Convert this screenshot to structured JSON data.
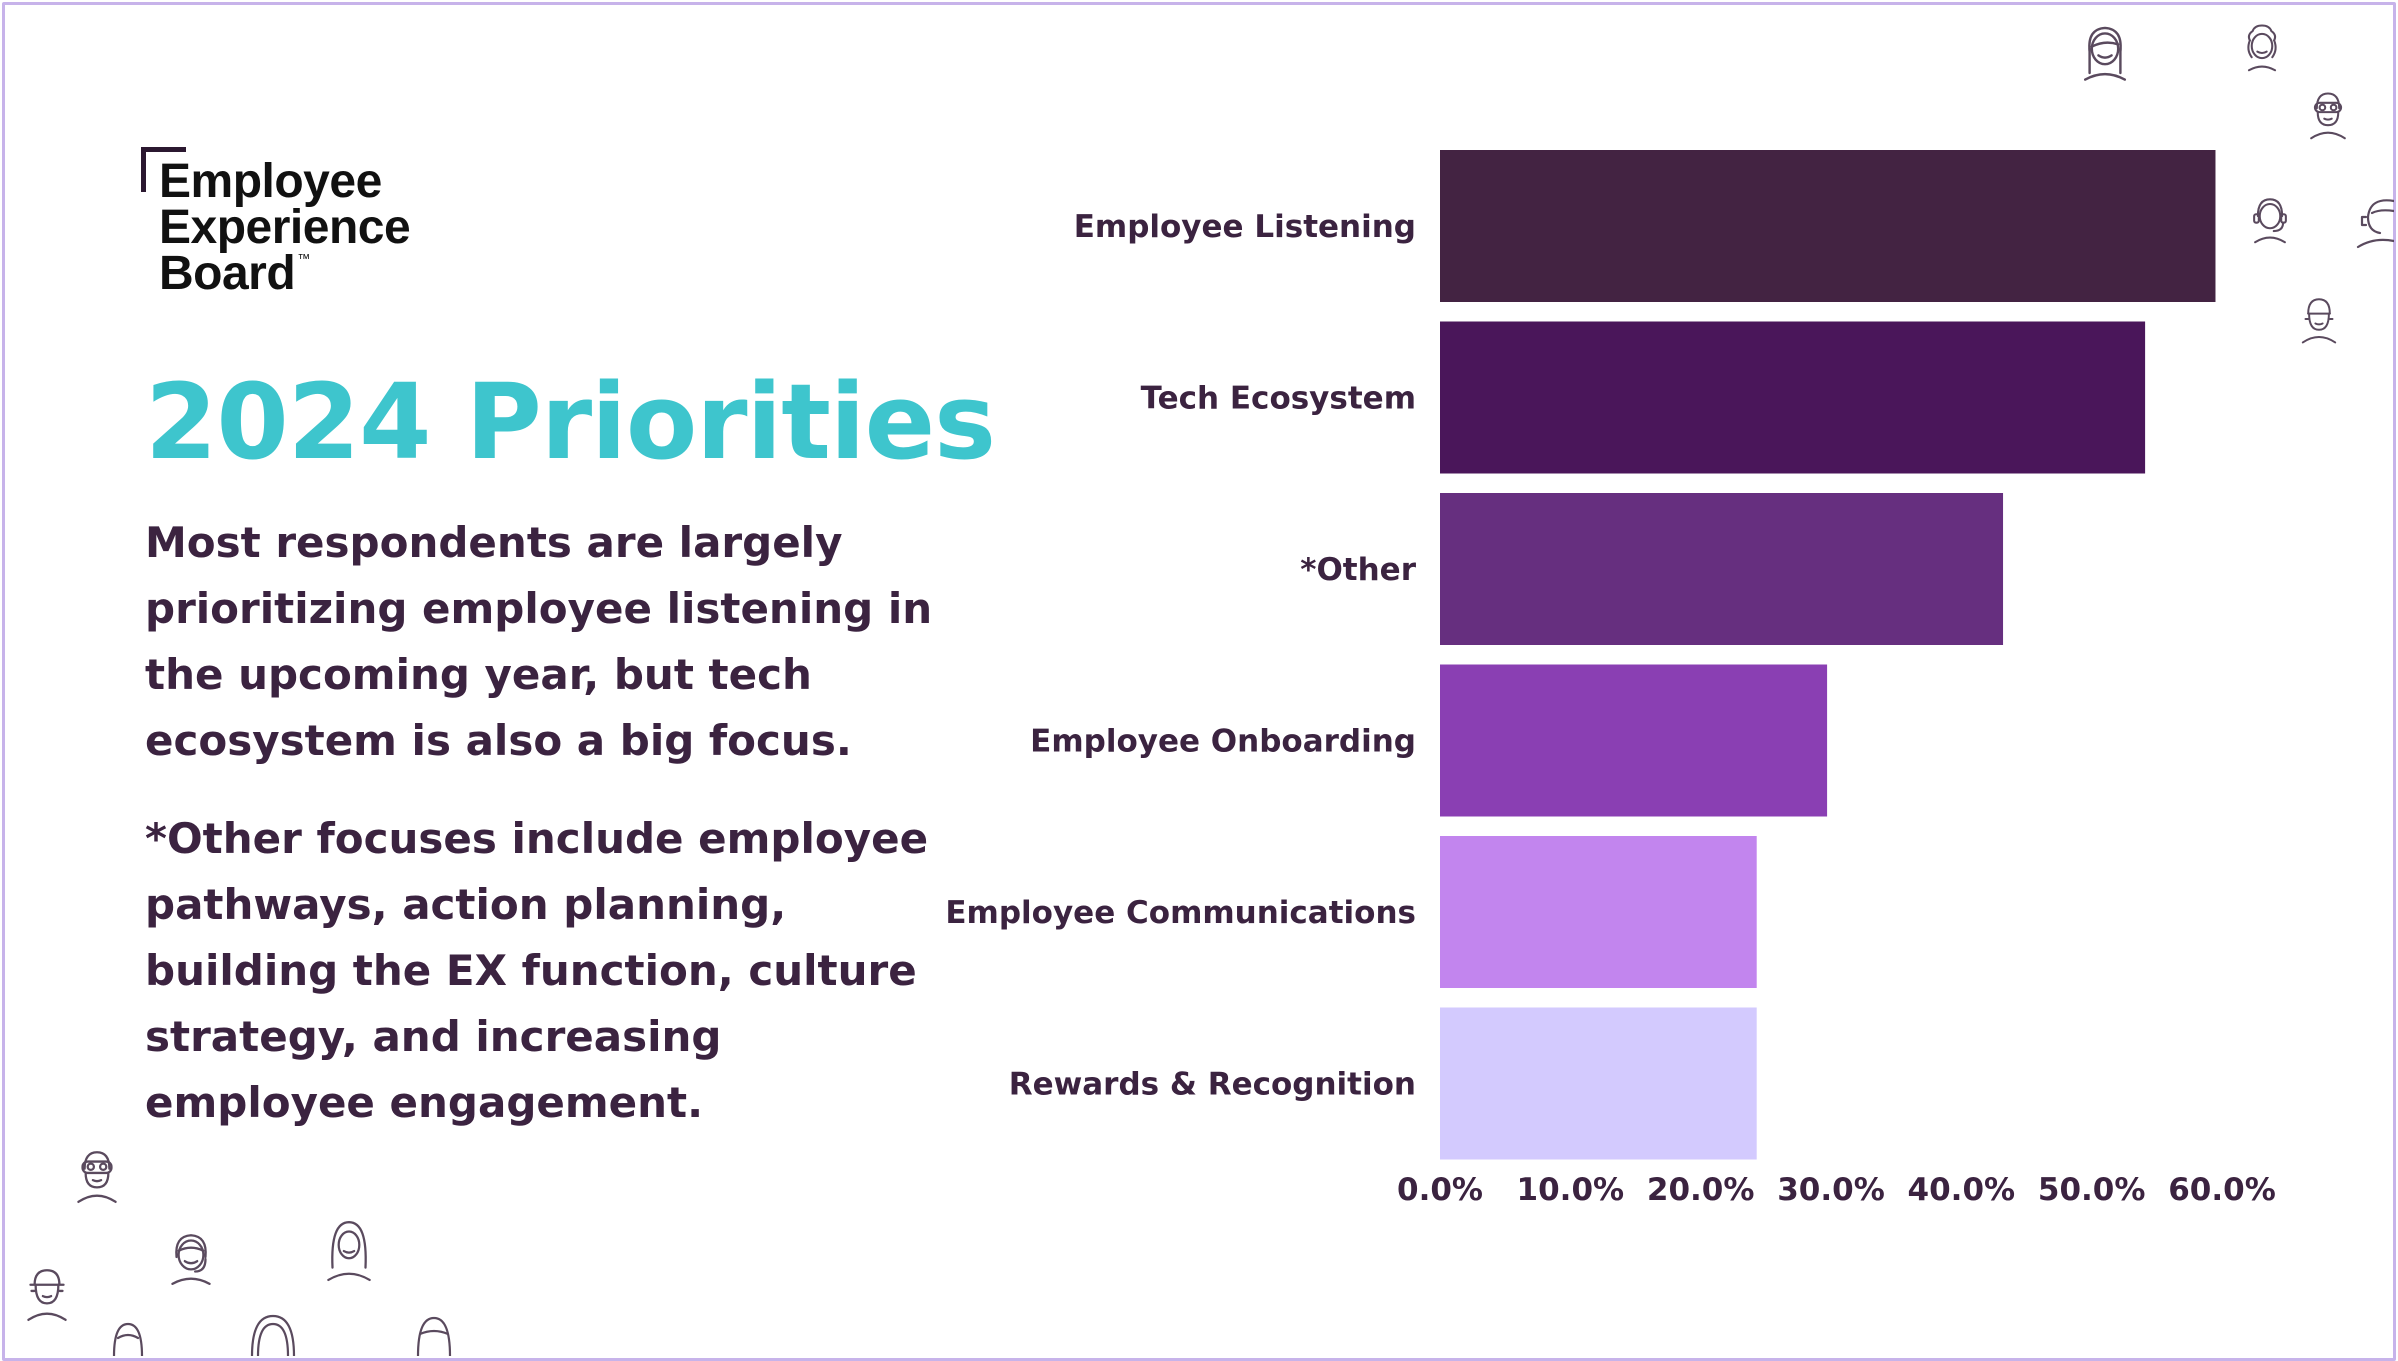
{
  "logo": {
    "line1": "Employee",
    "line2": "Experience",
    "line3": "Board",
    "trademark": "™"
  },
  "title": "2024 Priorities",
  "paragraph1": [
    "Most respondents are largely",
    "prioritizing employee listening in",
    "the upcoming year, but tech",
    "ecosystem is also a big focus."
  ],
  "paragraph2": [
    "*Other focuses include employee",
    "pathways, action planning,",
    "building the EX function, culture",
    "strategy, and increasing",
    "employee engagement."
  ],
  "colors": {
    "title": "#3ec5cd",
    "text": "#3b2340",
    "frame": "#c7b3ea",
    "icon_stroke": "#5a4a5e"
  },
  "icons": [
    "agent-headset-icon",
    "person-curly-hair-icon",
    "person-goggles-icon",
    "agent-headset-icon",
    "person-side-icon",
    "person-face-icon",
    "person-goggles-icon",
    "agent-headset-icon",
    "person-long-hair-icon",
    "person-cap-icon",
    "person-partial-icon",
    "person-partial-icon",
    "person-partial-icon"
  ],
  "chart_data": {
    "type": "bar",
    "orientation": "horizontal",
    "categories": [
      "Employee Listening",
      "Tech Ecosystem",
      "*Other",
      "Employee Onboarding",
      "Employee Communications",
      "Rewards & Recognition"
    ],
    "values": [
      59.5,
      54.1,
      43.2,
      29.7,
      24.3,
      24.3
    ],
    "bar_colors": [
      "#432342",
      "#4a165a",
      "#662f7f",
      "#8a3fb3",
      "#c285ee",
      "#d3cafe"
    ],
    "x_ticks": [
      "0.0%",
      "10.0%",
      "20.0%",
      "30.0%",
      "40.0%",
      "50.0%",
      "60.0%"
    ],
    "xlim": [
      0,
      60
    ],
    "grid": false,
    "legend": false
  }
}
